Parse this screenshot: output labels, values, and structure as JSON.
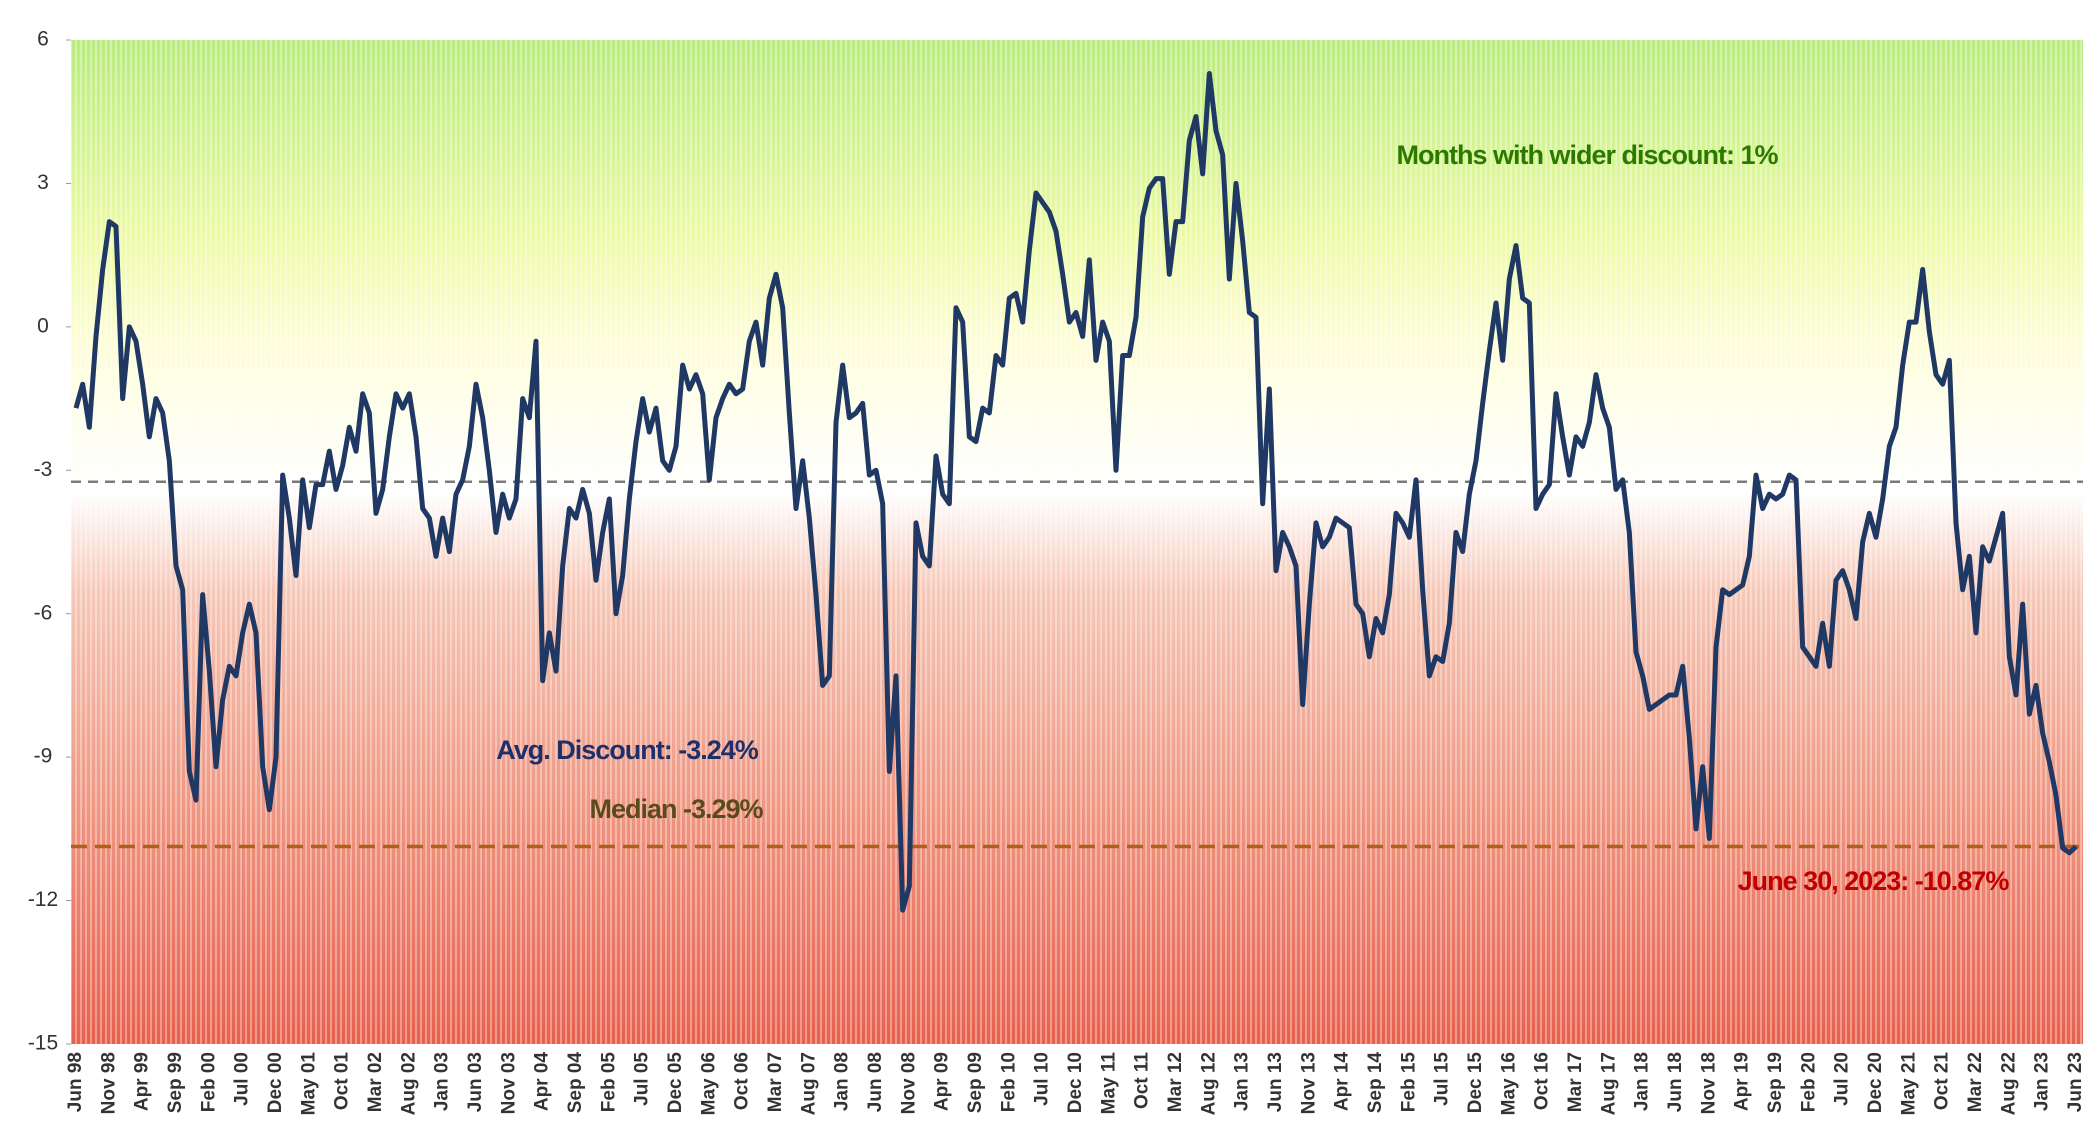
{
  "chart_data": {
    "type": "line",
    "categories": [
      "Jun 98",
      null,
      null,
      null,
      null,
      "Nov 98",
      null,
      null,
      null,
      null,
      "Apr 99",
      null,
      null,
      null,
      null,
      "Sep 99",
      null,
      null,
      null,
      null,
      "Feb 00",
      null,
      null,
      null,
      null,
      "Jul 00",
      null,
      null,
      null,
      null,
      "Dec 00",
      null,
      null,
      null,
      null,
      "May 01",
      null,
      null,
      null,
      null,
      "Oct 01",
      null,
      null,
      null,
      null,
      "Mar 02",
      null,
      null,
      null,
      null,
      "Aug 02",
      null,
      null,
      null,
      null,
      "Jan 03",
      null,
      null,
      null,
      null,
      "Jun 03",
      null,
      null,
      null,
      null,
      "Nov 03",
      null,
      null,
      null,
      null,
      "Apr 04",
      null,
      null,
      null,
      null,
      "Sep 04",
      null,
      null,
      null,
      null,
      "Feb 05",
      null,
      null,
      null,
      null,
      "Jul 05",
      null,
      null,
      null,
      null,
      "Dec 05",
      null,
      null,
      null,
      null,
      "May 06",
      null,
      null,
      null,
      null,
      "Oct 06",
      null,
      null,
      null,
      null,
      "Mar 07",
      null,
      null,
      null,
      null,
      "Aug 07",
      null,
      null,
      null,
      null,
      "Jan 08",
      null,
      null,
      null,
      null,
      "Jun 08",
      null,
      null,
      null,
      null,
      "Nov 08",
      null,
      null,
      null,
      null,
      "Apr 09",
      null,
      null,
      null,
      null,
      "Sep 09",
      null,
      null,
      null,
      null,
      "Feb 10",
      null,
      null,
      null,
      null,
      "Jul 10",
      null,
      null,
      null,
      null,
      "Dec 10",
      null,
      null,
      null,
      null,
      "May 11",
      null,
      null,
      null,
      null,
      "Oct 11",
      null,
      null,
      null,
      null,
      "Mar 12",
      null,
      null,
      null,
      null,
      "Aug 12",
      null,
      null,
      null,
      null,
      "Jan 13",
      null,
      null,
      null,
      null,
      "Jun 13",
      null,
      null,
      null,
      null,
      "Nov 13",
      null,
      null,
      null,
      null,
      "Apr 14",
      null,
      null,
      null,
      null,
      "Sep 14",
      null,
      null,
      null,
      null,
      "Feb 15",
      null,
      null,
      null,
      null,
      "Jul 15",
      null,
      null,
      null,
      null,
      "Dec 15",
      null,
      null,
      null,
      null,
      "May 16",
      null,
      null,
      null,
      null,
      "Oct 16",
      null,
      null,
      null,
      null,
      "Mar 17",
      null,
      null,
      null,
      null,
      "Aug 17",
      null,
      null,
      null,
      null,
      "Jan 18",
      null,
      null,
      null,
      null,
      "Jun 18",
      null,
      null,
      null,
      null,
      "Nov 18",
      null,
      null,
      null,
      null,
      "Apr 19",
      null,
      null,
      null,
      null,
      "Sep 19",
      null,
      null,
      null,
      null,
      "Feb 20",
      null,
      null,
      null,
      null,
      "Jul 20",
      null,
      null,
      null,
      null,
      "Dec 20",
      null,
      null,
      null,
      null,
      "May 21",
      null,
      null,
      null,
      null,
      "Oct 21",
      null,
      null,
      null,
      null,
      "Mar 22",
      null,
      null,
      null,
      null,
      "Aug 22",
      null,
      null,
      null,
      null,
      "Jan 23",
      null,
      null,
      null,
      null,
      "Jun 23"
    ],
    "series": [
      {
        "color": "#1f3864",
        "values": [
          -1.7,
          -1.2,
          -2.1,
          -0.2,
          1.2,
          2.2,
          2.1,
          -1.5,
          0,
          -0.3,
          -1.2,
          -2.3,
          -1.5,
          -1.8,
          -2.8,
          -5.0,
          -5.5,
          -9.3,
          -9.9,
          -5.6,
          -7.2,
          -9.2,
          -7.8,
          -7.1,
          -7.3,
          -6.4,
          -5.8,
          -6.4,
          -9.2,
          -10.1,
          -9.0,
          -3.1,
          -4.0,
          -5.2,
          -3.2,
          -4.2,
          -3.3,
          -3.3,
          -2.6,
          -3.4,
          -2.9,
          -2.1,
          -2.6,
          -1.4,
          -1.8,
          -3.9,
          -3.4,
          -2.3,
          -1.4,
          -1.7,
          -1.4,
          -2.3,
          -3.8,
          -4.0,
          -4.8,
          -4.0,
          -4.7,
          -3.5,
          -3.2,
          -2.5,
          -1.2,
          -1.9,
          -3.0,
          -4.3,
          -3.5,
          -4.0,
          -3.6,
          -1.5,
          -1.9,
          -0.3,
          -7.4,
          -6.4,
          -7.2,
          -5.0,
          -3.8,
          -4.0,
          -3.4,
          -3.9,
          -5.3,
          -4.3,
          -3.6,
          -6.0,
          -5.2,
          -3.6,
          -2.4,
          -1.5,
          -2.2,
          -1.7,
          -2.8,
          -3.0,
          -2.5,
          -0.8,
          -1.3,
          -1.0,
          -1.4,
          -3.2,
          -1.9,
          -1.5,
          -1.2,
          -1.4,
          -1.3,
          -0.3,
          0.1,
          -0.8,
          0.6,
          1.1,
          0.4,
          -1.8,
          -3.8,
          -2.8,
          -4.0,
          -5.6,
          -7.5,
          -7.3,
          -2.0,
          -0.8,
          -1.9,
          -1.8,
          -1.6,
          -3.1,
          -3.0,
          -3.7,
          -9.3,
          -7.3,
          -12.2,
          -11.7,
          -4.1,
          -4.8,
          -5.0,
          -2.7,
          -3.5,
          -3.7,
          0.4,
          0.1,
          -2.3,
          -2.4,
          -1.7,
          -1.8,
          -0.6,
          -0.8,
          0.6,
          0.7,
          0.1,
          1.6,
          2.8,
          2.6,
          2.4,
          2.0,
          1.1,
          0.1,
          0.3,
          -0.2,
          1.4,
          -0.7,
          0.1,
          -0.3,
          -3.0,
          -0.6,
          -0.6,
          0.2,
          2.3,
          2.9,
          3.1,
          3.1,
          1.1,
          2.2,
          2.2,
          3.9,
          4.4,
          3.2,
          5.3,
          4.1,
          3.6,
          1.0,
          3.0,
          1.8,
          0.3,
          0.2,
          -3.7,
          -1.3,
          -5.1,
          -4.3,
          -4.6,
          -5.0,
          -7.9,
          -5.8,
          -4.1,
          -4.6,
          -4.4,
          -4.0,
          -4.1,
          -4.2,
          -5.8,
          -6.0,
          -6.9,
          -6.1,
          -6.4,
          -5.6,
          -3.9,
          -4.1,
          -4.4,
          -3.2,
          -5.5,
          -7.3,
          -6.9,
          -7.0,
          -6.2,
          -4.3,
          -4.7,
          -3.5,
          -2.8,
          -1.6,
          -0.5,
          0.5,
          -0.7,
          1.0,
          1.7,
          0.6,
          0.5,
          -3.8,
          -3.5,
          -3.3,
          -1.4,
          -2.3,
          -3.1,
          -2.3,
          -2.5,
          -2.0,
          -1.0,
          -1.7,
          -2.1,
          -3.4,
          -3.2,
          -4.3,
          -6.8,
          -7.3,
          -8.0,
          -7.9,
          -7.8,
          -7.7,
          -7.7,
          -7.1,
          -8.6,
          -10.5,
          -9.2,
          -10.7,
          -6.7,
          -5.5,
          -5.6,
          -5.5,
          -5.4,
          -4.8,
          -3.1,
          -3.8,
          -3.5,
          -3.6,
          -3.5,
          -3.1,
          -3.2,
          -6.7,
          -6.9,
          -7.1,
          -6.2,
          -7.1,
          -5.3,
          -5.1,
          -5.5,
          -6.1,
          -4.5,
          -3.9,
          -4.4,
          -3.6,
          -2.5,
          -2.1,
          -0.8,
          0.1,
          0.1,
          1.2,
          -0.1,
          -1.0,
          -1.2,
          -0.7,
          -4.1,
          -5.5,
          -4.8,
          -6.4,
          -4.6,
          -4.9,
          -4.4,
          -3.9,
          -6.9,
          -7.7,
          -5.8,
          -8.1,
          -7.5,
          -8.5,
          -9.1,
          -9.8,
          -10.9,
          -11.0,
          -10.87
        ]
      }
    ],
    "ylim": [
      -15,
      6
    ],
    "yticks": [
      -15,
      -12,
      -9,
      -6,
      -3,
      0,
      3,
      6
    ],
    "reference_lines": [
      {
        "value": -3.24,
        "color": "#7a7a7a"
      },
      {
        "value": -10.87,
        "color": "#b0601c"
      }
    ],
    "annotations": [
      {
        "text": "Months with wider discount: 1%",
        "color": "#2a7a00"
      },
      {
        "text": "Avg. Discount: -3.24%",
        "color": "#1f2f6b"
      },
      {
        "text": "Median  -3.29%",
        "color": "#5b4a1c"
      },
      {
        "text": "June 30, 2023: -10.87%",
        "color": "#c00000"
      }
    ]
  }
}
